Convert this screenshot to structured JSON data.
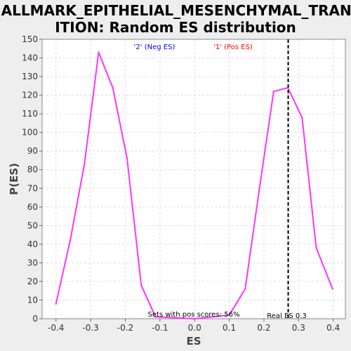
{
  "chart_data": {
    "type": "line",
    "title_lines": [
      "HALLMARK_EPITHELIAL_MESENCHYMAL_TRANS",
      "ITION: Random ES distribution"
    ],
    "xlabel": "ES",
    "ylabel": "P(ES)",
    "xlim": [
      -0.44,
      0.435
    ],
    "ylim": [
      0,
      150
    ],
    "x_ticks": [
      -0.4,
      -0.3,
      -0.2,
      -0.1,
      0.0,
      0.1,
      0.2,
      0.3,
      0.4
    ],
    "x_tick_labels": [
      "-0.4",
      "-0.3",
      "-0.2",
      "-0.1",
      "0.0",
      "0.1",
      "0.2",
      "0.3",
      "0.4"
    ],
    "y_ticks": [
      0,
      10,
      20,
      30,
      40,
      50,
      60,
      70,
      80,
      90,
      100,
      110,
      120,
      130,
      140,
      150
    ],
    "y_tick_labels": [
      "0",
      "10",
      "20",
      "30",
      "40",
      "50",
      "60",
      "70",
      "80",
      "90",
      "100",
      "110",
      "120",
      "130",
      "140",
      "150"
    ],
    "grid": true,
    "series": [
      {
        "color": "#ff33ff",
        "x": [
          -0.4,
          -0.359,
          -0.318,
          -0.277,
          -0.236,
          -0.195,
          -0.154,
          -0.113,
          0.0,
          0.1,
          0.146,
          0.187,
          0.228,
          0.269,
          0.31,
          0.351,
          0.398
        ],
        "y": [
          8,
          42,
          83,
          143,
          124,
          86,
          18,
          1,
          0,
          2,
          16,
          70,
          122,
          124,
          108,
          38,
          16
        ]
      }
    ],
    "legend": [
      {
        "text": "'2' (Neg ES)",
        "color": "#0000ff"
      },
      {
        "text": "'1' (Pos ES)",
        "color": "#ff0000"
      }
    ],
    "real_es": {
      "x": 0.27,
      "label": "Real ES 0.3"
    },
    "annotation": "Sets with pos scores: 56%"
  }
}
